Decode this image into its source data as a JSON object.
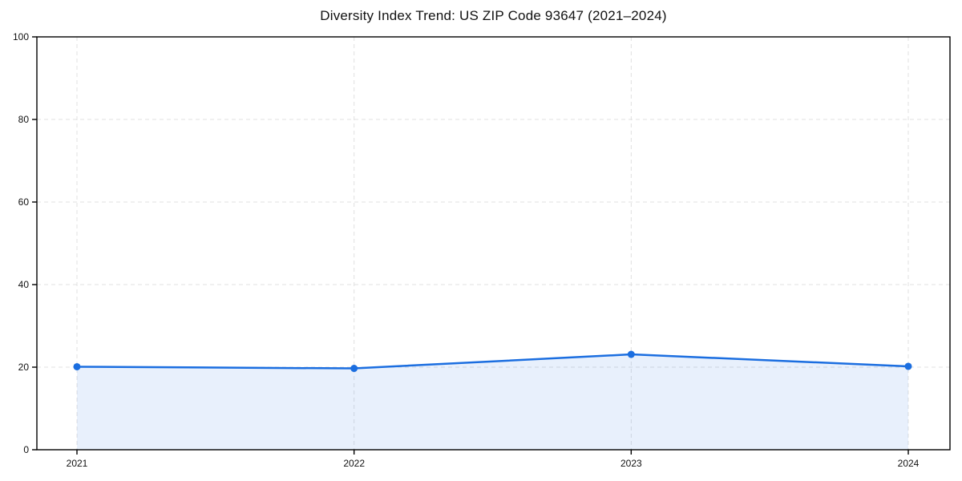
{
  "chart_data": {
    "type": "area",
    "title": "Diversity Index Trend: US ZIP Code 93647 (2021–2024)",
    "xlabel": "",
    "ylabel": "",
    "categories": [
      "2021",
      "2022",
      "2023",
      "2024"
    ],
    "series": [
      {
        "name": "Diversity Index",
        "values": [
          20.1,
          19.7,
          23.1,
          20.2
        ]
      }
    ],
    "ylim": [
      0,
      100
    ],
    "y_ticks": [
      0,
      20,
      40,
      60,
      80,
      100
    ],
    "grid": "dashed both axes",
    "legend": "none",
    "colors": {
      "line": "#1b6ee0",
      "marker": "#1b6ee0",
      "fill": "#1b6ee0",
      "fill_opacity": 0.1,
      "grid": "#e0e0e0",
      "spine": "#000000",
      "tick_text": "#111111",
      "background": "#ffffff"
    }
  }
}
